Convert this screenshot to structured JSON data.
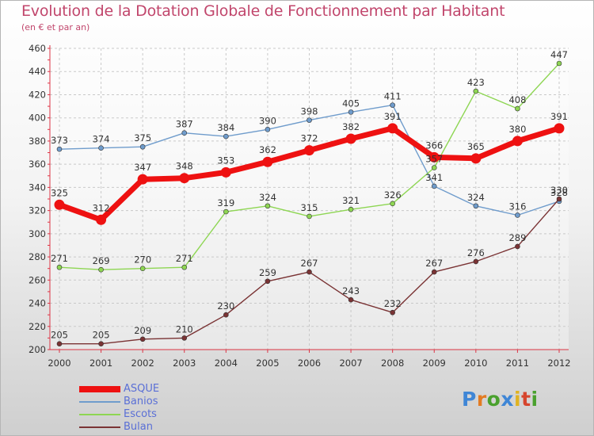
{
  "chart_data": {
    "type": "line",
    "title": "Evolution de la Dotation Globale de Fonctionnement par Habitant",
    "subtitle": "(en € et par an)",
    "x": [
      "2000",
      "2001",
      "2002",
      "2003",
      "2004",
      "2005",
      "2006",
      "2007",
      "2008",
      "2009",
      "2010",
      "2011",
      "2012"
    ],
    "ylim": [
      200,
      460
    ],
    "yticks": [
      200,
      220,
      240,
      260,
      280,
      300,
      320,
      340,
      360,
      380,
      400,
      420,
      440,
      460
    ],
    "grid": true,
    "legend_position": "bottom-left",
    "series": [
      {
        "name": "Banios",
        "color": "#6f9ccc",
        "values": [
          373,
          374,
          375,
          387,
          384,
          390,
          398,
          405,
          411,
          341,
          324,
          316,
          328
        ]
      },
      {
        "name": "Escots",
        "color": "#8ed653",
        "values": [
          271,
          269,
          270,
          271,
          319,
          324,
          315,
          321,
          326,
          357,
          423,
          408,
          447
        ]
      },
      {
        "name": "Bulan",
        "color": "#7a3334",
        "values": [
          205,
          205,
          209,
          210,
          230,
          259,
          267,
          243,
          232,
          267,
          276,
          289,
          330
        ]
      },
      {
        "name": "ASQUE",
        "color": "#ee1111",
        "values": [
          325,
          312,
          347,
          348,
          353,
          362,
          372,
          382,
          391,
          366,
          365,
          380,
          391
        ]
      }
    ]
  },
  "legend": {
    "items": [
      "ASQUE",
      "Banios",
      "Escots",
      "Bulan"
    ]
  },
  "logo": {
    "letters": [
      "P",
      "r",
      "o",
      "x",
      "i",
      "t",
      "i"
    ],
    "colors": [
      "#3f86d6",
      "#e37b22",
      "#4aa12e",
      "#3f86d6",
      "#e0b321",
      "#d6452e",
      "#4aa12e"
    ]
  }
}
